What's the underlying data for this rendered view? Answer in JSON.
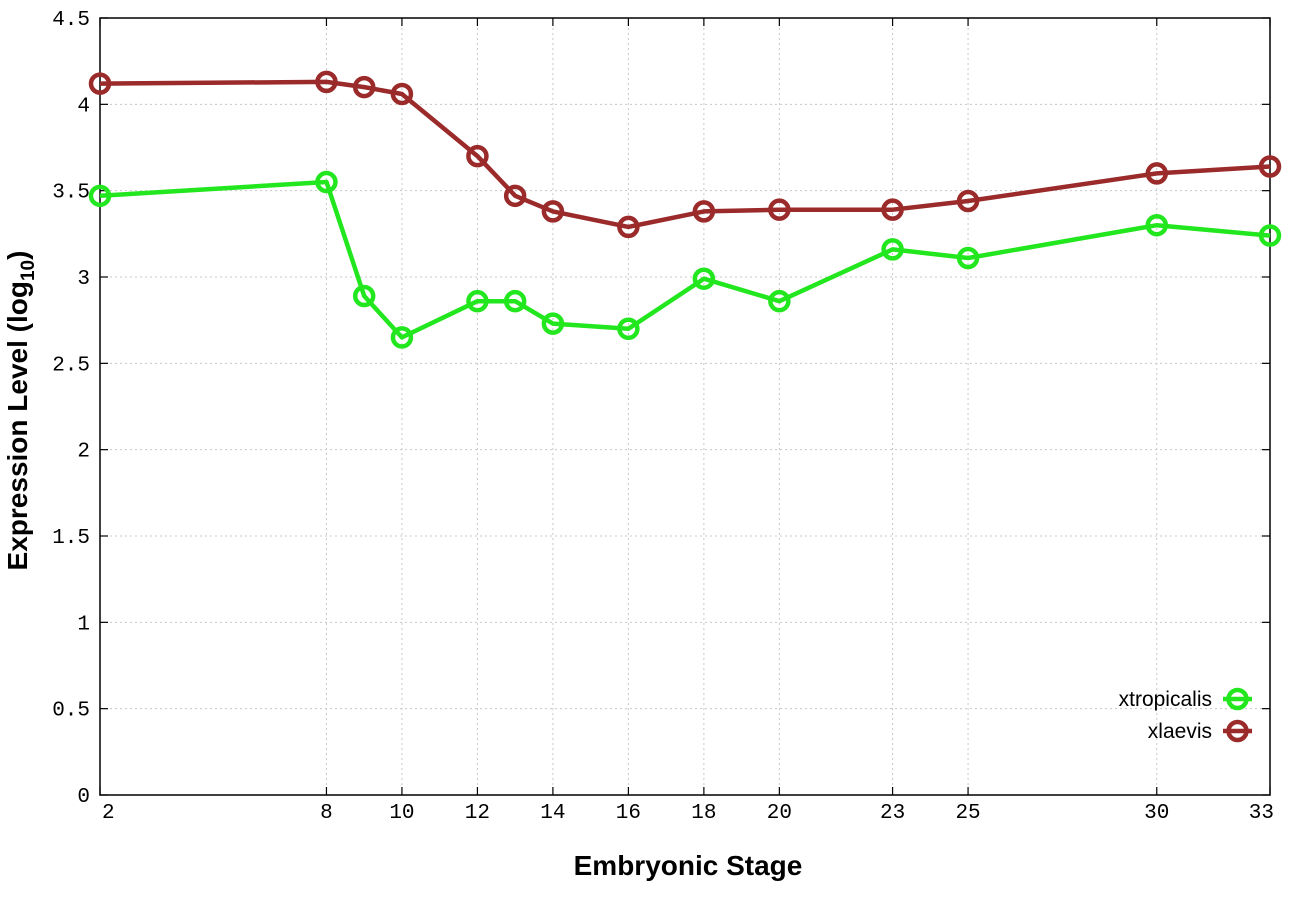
{
  "chart_data": {
    "type": "line",
    "xlabel": "Embryonic Stage",
    "ylabel": "Expression Level (log10)",
    "ylabel_parts": {
      "main": "Expression Level (log",
      "sub": "10",
      "close": ")"
    },
    "x_ticks": [
      2,
      8,
      10,
      12,
      14,
      16,
      18,
      20,
      23,
      25,
      30,
      33
    ],
    "x_tick_labels": [
      "2",
      "8",
      "10",
      "12",
      "14",
      "16",
      "18",
      "20",
      "23",
      "25",
      "30",
      "33"
    ],
    "y_ticks": [
      0,
      0.5,
      1,
      1.5,
      2,
      2.5,
      3,
      3.5,
      4,
      4.5
    ],
    "y_tick_labels": [
      "0",
      "0.5",
      "1",
      "1.5",
      "2",
      "2.5",
      "3",
      "3.5",
      "4",
      "4.5"
    ],
    "xlim": [
      2,
      33
    ],
    "ylim": [
      0,
      4.5
    ],
    "grid": true,
    "legend_position": "bottom-right",
    "series": [
      {
        "name": "xtropicalis",
        "color": "#22e61e",
        "marker": "open-circle",
        "x": [
          2,
          8,
          9,
          10,
          12,
          13,
          14,
          16,
          18,
          20,
          23,
          25,
          30,
          33
        ],
        "y": [
          3.47,
          3.55,
          2.89,
          2.65,
          2.86,
          2.86,
          2.73,
          2.7,
          2.99,
          2.86,
          3.16,
          3.11,
          3.3,
          3.24
        ]
      },
      {
        "name": "xlaevis",
        "color": "#9b2a2a",
        "marker": "open-circle",
        "x": [
          2,
          8,
          9,
          10,
          12,
          13,
          14,
          16,
          18,
          20,
          23,
          25,
          30,
          33
        ],
        "y": [
          4.12,
          4.13,
          4.1,
          4.06,
          3.7,
          3.47,
          3.38,
          3.29,
          3.38,
          3.39,
          3.39,
          3.44,
          3.6,
          3.64
        ]
      }
    ]
  }
}
